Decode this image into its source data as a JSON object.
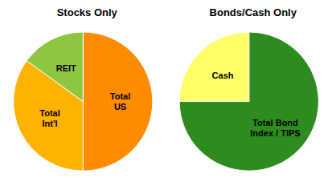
{
  "chart_data": [
    {
      "type": "pie",
      "title": "Stocks Only",
      "categories": [
        "Total\nUS",
        "Total\nInt'l",
        "REIT"
      ],
      "values": [
        50,
        35,
        15
      ],
      "colors": [
        "#FF8C00",
        "#FFB300",
        "#8DC63F"
      ]
    },
    {
      "type": "pie",
      "title": "Bonds/Cash Only",
      "categories": [
        "Total Bond\nIndex / TIPS",
        "Cash"
      ],
      "values": [
        75,
        25
      ],
      "colors": [
        "#2E8B1E",
        "#FFFF66"
      ]
    }
  ]
}
